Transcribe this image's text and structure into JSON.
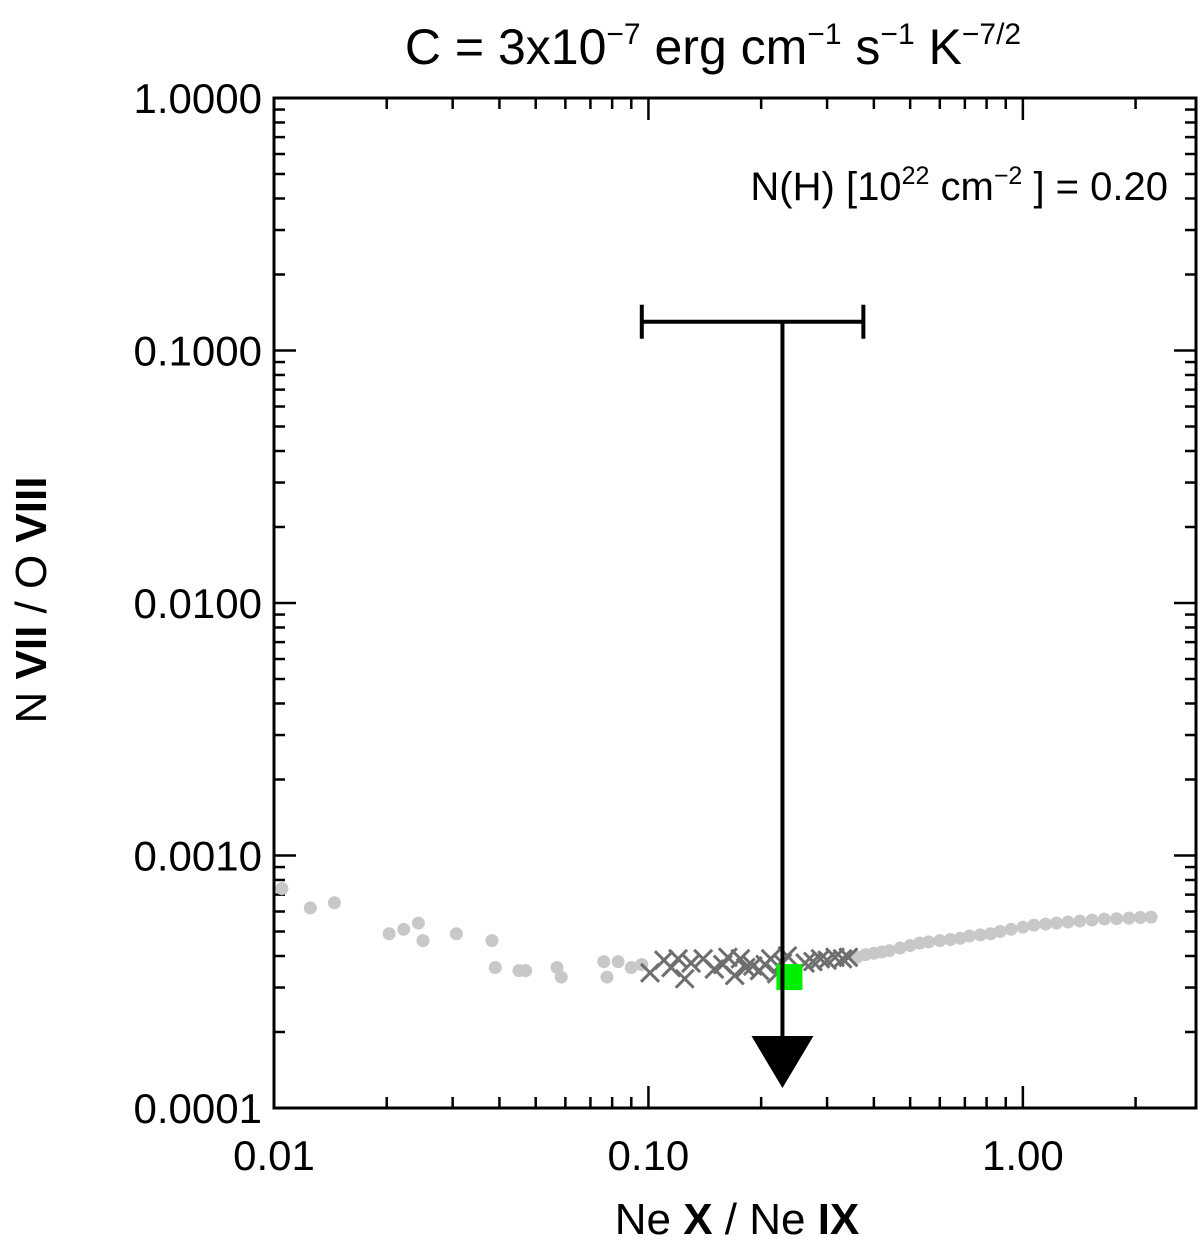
{
  "chart_data": {
    "type": "scatter",
    "title": "C = 3x10$^{-7}$ erg cm$^{-1}$ s$^{-1}$ K$^{-7/2}$",
    "title_parts": {
      "base": "C = 3x10",
      "exp1": "−7",
      "unit1": " erg cm",
      "exp2": "−1",
      "unit2": " s",
      "exp3": "−1",
      "unit3": " K",
      "exp4": "−7/2"
    },
    "annotation": {
      "base": "N(H) [10",
      "exp1": "22",
      "unit": " cm",
      "exp2": "−2",
      "tail": " ] = 0.20"
    },
    "xlabel": {
      "p1": "Ne ",
      "p2": "X",
      "p3": " / Ne ",
      "p4": "IX"
    },
    "ylabel": {
      "p1": "N ",
      "p2": "VII",
      "p3": " / O ",
      "p4": "VIII"
    },
    "xscale": "log",
    "yscale": "log",
    "xlim": [
      0.01,
      2.9
    ],
    "ylim": [
      0.0001,
      1.0
    ],
    "xticks": [
      {
        "value": 0.01,
        "label": "0.01"
      },
      {
        "value": 0.1,
        "label": "0.10"
      },
      {
        "value": 1.0,
        "label": "1.00"
      }
    ],
    "yticks": [
      {
        "value": 1.0,
        "label": "1.0000"
      },
      {
        "value": 0.1,
        "label": "0.1000"
      },
      {
        "value": 0.01,
        "label": "0.0100"
      },
      {
        "value": 0.001,
        "label": "0.0010"
      },
      {
        "value": 0.0001,
        "label": "0.0001"
      }
    ],
    "colors": {
      "light_points": "#c8c8c8",
      "cross_points": "#6e6e6e",
      "observed_point": "#00ee00",
      "limit": "#000000"
    },
    "series": [
      {
        "marker": "circle",
        "color": "#c8c8c8",
        "points": [
          [
            0.0105,
            0.00074
          ],
          [
            0.0125,
            0.00062
          ],
          [
            0.0145,
            0.00065
          ],
          [
            0.0203,
            0.00049
          ],
          [
            0.0222,
            0.00051
          ],
          [
            0.0243,
            0.00054
          ],
          [
            0.025,
            0.00046
          ],
          [
            0.0307,
            0.00049
          ],
          [
            0.0382,
            0.00046
          ],
          [
            0.039,
            0.00036
          ],
          [
            0.0451,
            0.00035
          ],
          [
            0.047,
            0.00035
          ],
          [
            0.057,
            0.00036
          ],
          [
            0.0585,
            0.00033
          ],
          [
            0.076,
            0.00038
          ],
          [
            0.0775,
            0.00033
          ],
          [
            0.083,
            0.00038
          ],
          [
            0.09,
            0.00036
          ],
          [
            0.096,
            0.00037
          ],
          [
            0.36,
            0.000395
          ],
          [
            0.38,
            0.000405
          ],
          [
            0.4,
            0.00041
          ],
          [
            0.42,
            0.000415
          ],
          [
            0.44,
            0.00042
          ],
          [
            0.47,
            0.00043
          ],
          [
            0.5,
            0.00044
          ],
          [
            0.53,
            0.00045
          ],
          [
            0.56,
            0.000455
          ],
          [
            0.6,
            0.00046
          ],
          [
            0.64,
            0.000465
          ],
          [
            0.68,
            0.00047
          ],
          [
            0.72,
            0.00048
          ],
          [
            0.77,
            0.000485
          ],
          [
            0.82,
            0.00049
          ],
          [
            0.87,
            0.0005
          ],
          [
            0.93,
            0.00051
          ],
          [
            1.0,
            0.00052
          ],
          [
            1.07,
            0.00053
          ],
          [
            1.15,
            0.000535
          ],
          [
            1.23,
            0.00054
          ],
          [
            1.32,
            0.000545
          ],
          [
            1.42,
            0.00055
          ],
          [
            1.53,
            0.000555
          ],
          [
            1.65,
            0.00056
          ],
          [
            1.78,
            0.000562
          ],
          [
            1.92,
            0.000565
          ],
          [
            2.06,
            0.000568
          ],
          [
            2.2,
            0.00057
          ]
        ]
      },
      {
        "marker": "cross",
        "color": "#6e6e6e",
        "points": [
          [
            0.101,
            0.000343
          ],
          [
            0.11,
            0.000385
          ],
          [
            0.115,
            0.00036
          ],
          [
            0.12,
            0.00039
          ],
          [
            0.125,
            0.000325
          ],
          [
            0.13,
            0.000375
          ],
          [
            0.14,
            0.00039
          ],
          [
            0.15,
            0.000355
          ],
          [
            0.158,
            0.00037
          ],
          [
            0.163,
            0.000395
          ],
          [
            0.17,
            0.000335
          ],
          [
            0.176,
            0.00039
          ],
          [
            0.182,
            0.00036
          ],
          [
            0.19,
            0.000365
          ],
          [
            0.198,
            0.00035
          ],
          [
            0.205,
            0.00037
          ],
          [
            0.212,
            0.00039
          ],
          [
            0.22,
            0.00034
          ],
          [
            0.228,
            0.000375
          ],
          [
            0.235,
            0.0004
          ],
          [
            0.262,
            0.000375
          ],
          [
            0.275,
            0.00038
          ],
          [
            0.288,
            0.00039
          ],
          [
            0.3,
            0.000385
          ],
          [
            0.315,
            0.000395
          ],
          [
            0.33,
            0.00039
          ],
          [
            0.342,
            0.000395
          ]
        ]
      },
      {
        "marker": "square",
        "color": "#00ee00",
        "points": [
          [
            0.238,
            0.00033
          ]
        ]
      }
    ],
    "upper_limit": {
      "x": 0.228,
      "xerr": [
        0.096,
        0.375
      ],
      "y_top": 0.13,
      "y_arrow_tip": 0.00012
    }
  }
}
